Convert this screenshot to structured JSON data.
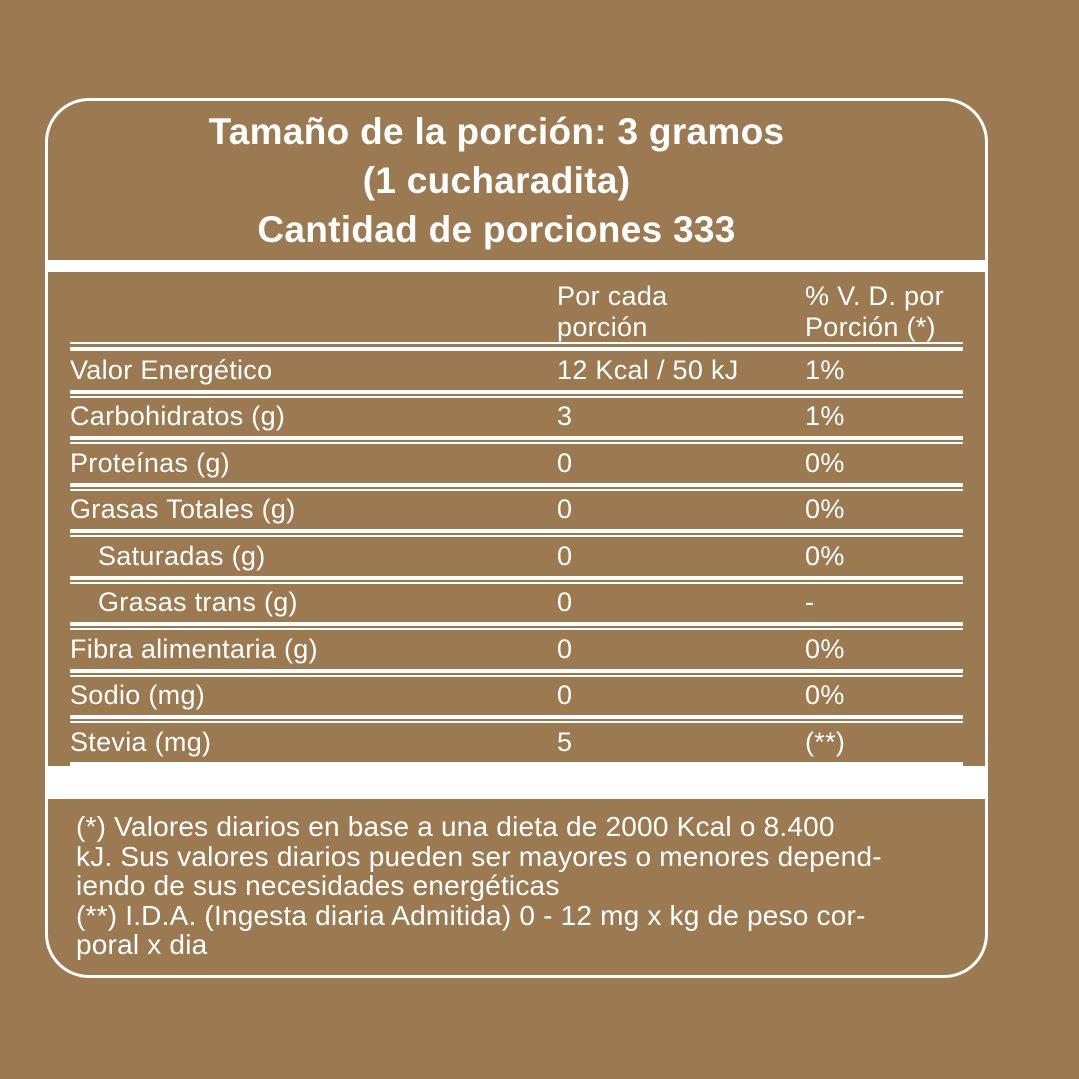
{
  "colors": {
    "background": "#9B7951",
    "foreground": "#FFFFFF"
  },
  "header": {
    "line1": "Tamaño de la porción: 3 gramos",
    "line2": "(1 cucharadita)",
    "line3": "Cantidad de porciones 333"
  },
  "table": {
    "columns": {
      "per_serving_line1": "Por cada",
      "per_serving_line2": "porción",
      "daily_value_line1": "% V. D. por",
      "daily_value_line2": "Porción (*)"
    },
    "rows": [
      {
        "label": "Valor Energético",
        "value": "12 Kcal / 50 kJ",
        "dv": "1%"
      },
      {
        "label": "Carbohidratos (g)",
        "value": "3",
        "dv": "1%"
      },
      {
        "label": "Proteínas (g)",
        "value": "0",
        "dv": "0%"
      },
      {
        "label": "Grasas Totales (g)",
        "value": "0",
        "dv": "0%"
      },
      {
        "label": "Saturadas (g)",
        "value": "0",
        "dv": "0%"
      },
      {
        "label": "Grasas trans (g)",
        "value": "0",
        "dv": "-"
      },
      {
        "label": "Fibra alimentaria (g)",
        "value": "0",
        "dv": "0%"
      },
      {
        "label": "Sodio (mg)",
        "value": "0",
        "dv": "0%"
      },
      {
        "label": "Stevia (mg)",
        "value": "5",
        "dv": "(**)"
      }
    ]
  },
  "footnote": {
    "lines": [
      "(*) Valores diarios en base a una dieta de 2000 Kcal o 8.400",
      "kJ. Sus valores diarios pueden ser mayores o menores depend-",
      "iendo de sus necesidades energéticas",
      "(**) I.D.A. (Ingesta diaria Admitida) 0 - 12 mg x kg de peso cor-",
      "poral x dia"
    ]
  }
}
